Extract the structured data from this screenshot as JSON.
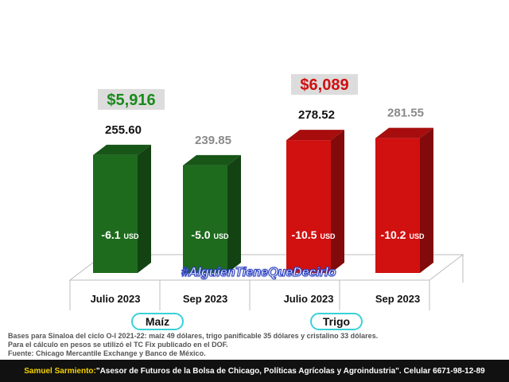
{
  "chart_data": {
    "type": "bar",
    "categories": [
      "Julio 2023",
      "Sep 2023",
      "Julio 2023",
      "Sep 2023"
    ],
    "values": [
      255.6,
      239.85,
      278.52,
      281.55
    ],
    "value_labels": [
      "255.60",
      "239.85",
      "278.52",
      "281.55"
    ],
    "change_labels": [
      "-6.1",
      "-5.0",
      "-10.5",
      "-10.2"
    ],
    "change_unit": "USD",
    "groups": [
      {
        "name": "Maíz",
        "categories": [
          0,
          1
        ],
        "peso_price": "$5,916",
        "color": "#1e6b1e"
      },
      {
        "name": "Trigo",
        "categories": [
          2,
          3
        ],
        "peso_price": "$6,089",
        "color": "#d11010"
      }
    ],
    "ylim": [
      0,
      290
    ],
    "grid": false
  },
  "hashtag": "#AlguienTieneQueDecirlo",
  "notes": [
    "Bases para Sinaloa del ciclo O-I 2021-22: maíz 49 dólares, trigo panificable 35 dólares y cristalino 33 dólares.",
    "Para el cálculo en pesos se utilizó el TC Fix publicado en el DOF.",
    "Fuente: Chicago Mercantile Exchange y Banco de México."
  ],
  "footer": {
    "name": "Samuel Sarmiento:",
    "text": " \"Asesor de Futuros de la Bolsa de Chicago, Políticas Agrícolas y Agroindustria\". Celular 6671-98-12-89"
  },
  "colors": {
    "maiz": "#1e6b1e",
    "trigo": "#d11010",
    "pill_border": "#3ad1d9",
    "maiz_price_text": "#1a8a1a",
    "trigo_price_text": "#d11010"
  }
}
